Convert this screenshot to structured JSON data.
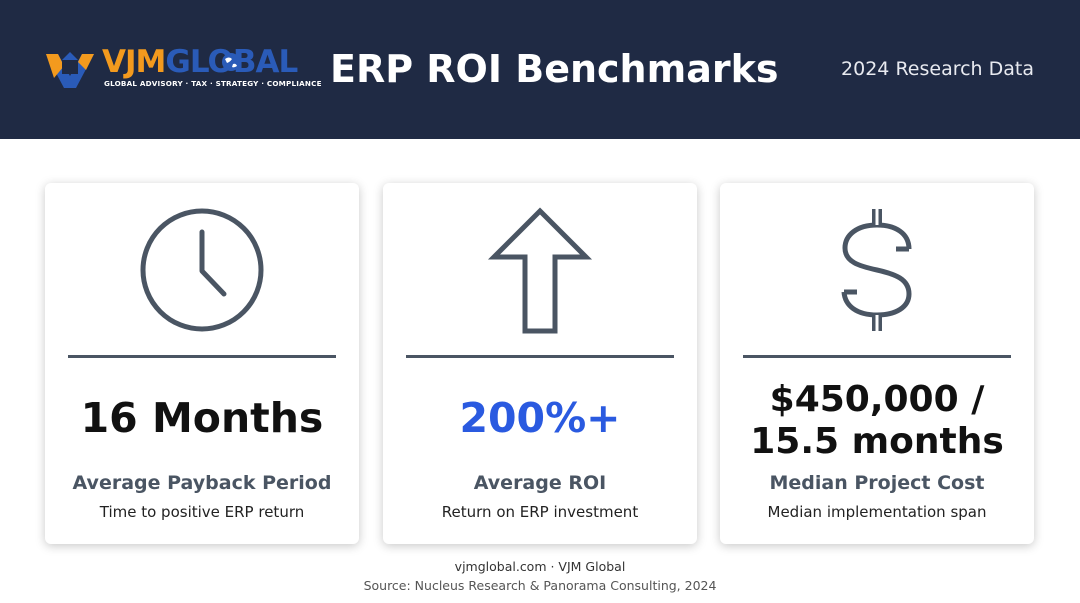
{
  "header": {
    "logo": {
      "word_part1": "VJM",
      "word_part2": "GLOBAL",
      "tagline": "GLOBAL ADVISORY · TAX · STRATEGY · COMPLIANCE",
      "mark_icon": "vjm-logo-mark-icon",
      "globe_icon": "globe-icon"
    },
    "title": "ERP ROI Benchmarks",
    "subtitle": "2024 Research Data"
  },
  "cards": [
    {
      "icon": "clock-icon",
      "value": "16 Months",
      "label": "Average Payback Period",
      "description": "Time to positive ERP return"
    },
    {
      "icon": "arrow-up-icon",
      "value": "200%+",
      "label": "Average ROI",
      "description": "Return on ERP investment"
    },
    {
      "icon": "dollar-icon",
      "value_line1": "$450,000 /",
      "value_line2": "15.5 months",
      "label": "Median Project Cost",
      "description": "Median implementation span"
    }
  ],
  "footer": {
    "site": "vjmglobal.com · VJM Global",
    "source": "Source: Nucleus Research & Panorama Consulting, 2024"
  },
  "colors": {
    "header_bg": "#1f2a44",
    "accent_blue": "#2a5ae0",
    "logo_orange": "#f39a1e",
    "logo_blue": "#2a5bb8",
    "icon_gray": "#4a5563"
  }
}
